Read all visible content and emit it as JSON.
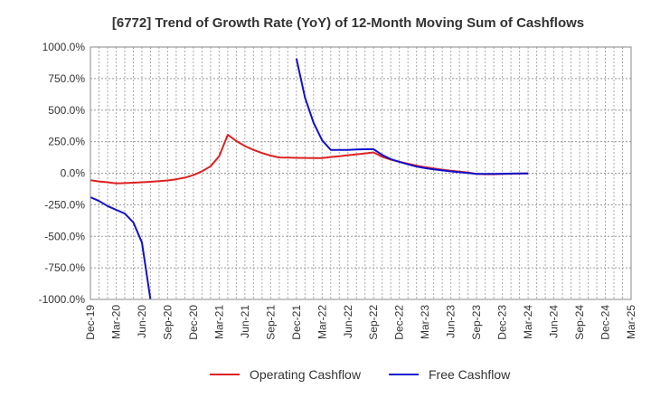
{
  "chart_data": {
    "type": "line",
    "title": "[6772]  Trend of Growth Rate (YoY) of 12-Month Moving Sum of Cashflows",
    "xlabel": "",
    "ylabel": "",
    "ylim": [
      -1000,
      1000
    ],
    "y_ticks": [
      "1000.0%",
      "750.0%",
      "500.0%",
      "250.0%",
      "0.0%",
      "-250.0%",
      "-500.0%",
      "-750.0%",
      "-1000.0%"
    ],
    "y_tick_values": [
      1000,
      750,
      500,
      250,
      0,
      -250,
      -500,
      -750,
      -1000
    ],
    "x_ticks": [
      "Dec-19",
      "Mar-20",
      "Jun-20",
      "Sep-20",
      "Dec-20",
      "Mar-21",
      "Jun-21",
      "Sep-21",
      "Dec-21",
      "Mar-22",
      "Jun-22",
      "Sep-22",
      "Dec-22",
      "Mar-23",
      "Jun-23",
      "Sep-23",
      "Dec-23",
      "Mar-24",
      "Jun-24",
      "Sep-24",
      "Dec-24",
      "Mar-25"
    ],
    "x_range": [
      "Dec-19",
      "Mar-25"
    ],
    "grid": true,
    "legend_position": "bottom",
    "series": [
      {
        "name": "Operating Cashflow",
        "color": "#dd2222",
        "x": [
          "Dec-19",
          "Jan-20",
          "Feb-20",
          "Mar-20",
          "Apr-20",
          "May-20",
          "Jun-20",
          "Jul-20",
          "Aug-20",
          "Sep-20",
          "Oct-20",
          "Nov-20",
          "Dec-20",
          "Jan-21",
          "Feb-21",
          "Mar-21",
          "Apr-21",
          "May-21",
          "Jun-21",
          "Jul-21",
          "Aug-21",
          "Sep-21",
          "Oct-21",
          "Nov-21",
          "Dec-21",
          "Jan-22",
          "Feb-22",
          "Mar-22",
          "Apr-22",
          "May-22",
          "Jun-22",
          "Jul-22",
          "Aug-22",
          "Sep-22",
          "Oct-22",
          "Nov-22",
          "Dec-22",
          "Jan-23",
          "Feb-23",
          "Mar-23",
          "Apr-23",
          "May-23",
          "Jun-23",
          "Jul-23",
          "Aug-23",
          "Sep-23",
          "Oct-23",
          "Nov-23",
          "Dec-23",
          "Jan-24",
          "Feb-24",
          "Mar-24"
        ],
        "values": [
          -55,
          -65,
          -72,
          -80,
          -78,
          -75,
          -72,
          -68,
          -63,
          -57,
          -48,
          -35,
          -15,
          15,
          55,
          135,
          305,
          255,
          215,
          185,
          160,
          140,
          125,
          123,
          122,
          121,
          120,
          120,
          128,
          135,
          143,
          150,
          157,
          165,
          130,
          108,
          90,
          75,
          60,
          48,
          38,
          28,
          20,
          12,
          5,
          -5,
          -8,
          -8,
          -6,
          -4,
          -3,
          -2
        ]
      },
      {
        "name": "Free Cashflow",
        "color": "#1111cc",
        "x": [
          "Dec-19",
          "Jan-20",
          "Feb-20",
          "Mar-20",
          "Apr-20",
          "May-20",
          "Jun-20",
          "Jul-20"
        ],
        "values": [
          -190,
          -220,
          -260,
          -290,
          -320,
          -390,
          -550,
          -1000
        ],
        "x2": [
          "Dec-21",
          "Jan-22",
          "Feb-22",
          "Mar-22",
          "Apr-22",
          "May-22",
          "Jun-22",
          "Jul-22",
          "Aug-22",
          "Sep-22",
          "Oct-22",
          "Nov-22",
          "Dec-22",
          "Jan-23",
          "Feb-23",
          "Mar-23",
          "Apr-23",
          "May-23",
          "Jun-23",
          "Jul-23",
          "Aug-23",
          "Sep-23",
          "Oct-23",
          "Nov-23",
          "Dec-23",
          "Jan-24",
          "Feb-24",
          "Mar-24"
        ],
        "values2": [
          910,
          600,
          400,
          260,
          185,
          185,
          185,
          188,
          190,
          190,
          145,
          112,
          90,
          70,
          52,
          40,
          30,
          22,
          14,
          8,
          2,
          -5,
          -6,
          -5,
          -4,
          -3,
          -2,
          -2
        ]
      }
    ]
  }
}
